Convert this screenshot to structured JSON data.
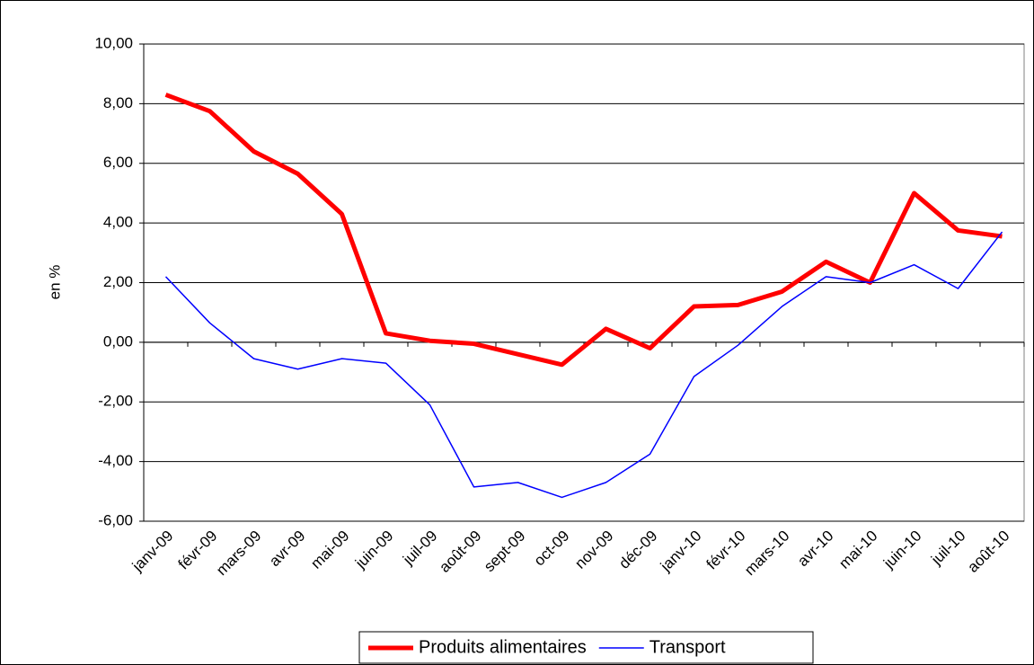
{
  "chart_data": {
    "type": "line",
    "ylabel": "en %",
    "categories": [
      "janv-09",
      "févr-09",
      "mars-09",
      "avr-09",
      "mai-09",
      "juin-09",
      "juil-09",
      "août-09",
      "sept-09",
      "oct-09",
      "nov-09",
      "déc-09",
      "janv-10",
      "févr-10",
      "mars-10",
      "avr-10",
      "mai-10",
      "juin-10",
      "juil-10",
      "août-10"
    ],
    "series": [
      {
        "name": "Produits alimentaires",
        "color": "#ff0000",
        "values": [
          8.3,
          7.75,
          6.4,
          5.65,
          4.3,
          0.3,
          0.05,
          -0.05,
          -0.4,
          -0.75,
          0.45,
          -0.2,
          1.2,
          1.25,
          1.7,
          2.7,
          2.0,
          5.0,
          3.75,
          3.55
        ]
      },
      {
        "name": "Transport",
        "color": "#0000ff",
        "values": [
          2.2,
          0.65,
          -0.55,
          -0.9,
          -0.55,
          -0.7,
          -2.1,
          -4.85,
          -4.7,
          -5.2,
          -4.7,
          -3.75,
          -1.15,
          -0.1,
          1.2,
          2.2,
          2.0,
          2.6,
          1.8,
          3.7
        ]
      }
    ],
    "ylim": [
      -6,
      10
    ],
    "yticks": [
      {
        "value": -6,
        "label": "-6,00"
      },
      {
        "value": -4,
        "label": "-4,00"
      },
      {
        "value": -2,
        "label": "-2,00"
      },
      {
        "value": 0,
        "label": "0,00"
      },
      {
        "value": 2,
        "label": "2,00"
      },
      {
        "value": 4,
        "label": "4,00"
      },
      {
        "value": 6,
        "label": "6,00"
      },
      {
        "value": 8,
        "label": "8,00"
      },
      {
        "value": 10,
        "label": "10,00"
      }
    ],
    "grid": true,
    "legend": "bottom"
  }
}
